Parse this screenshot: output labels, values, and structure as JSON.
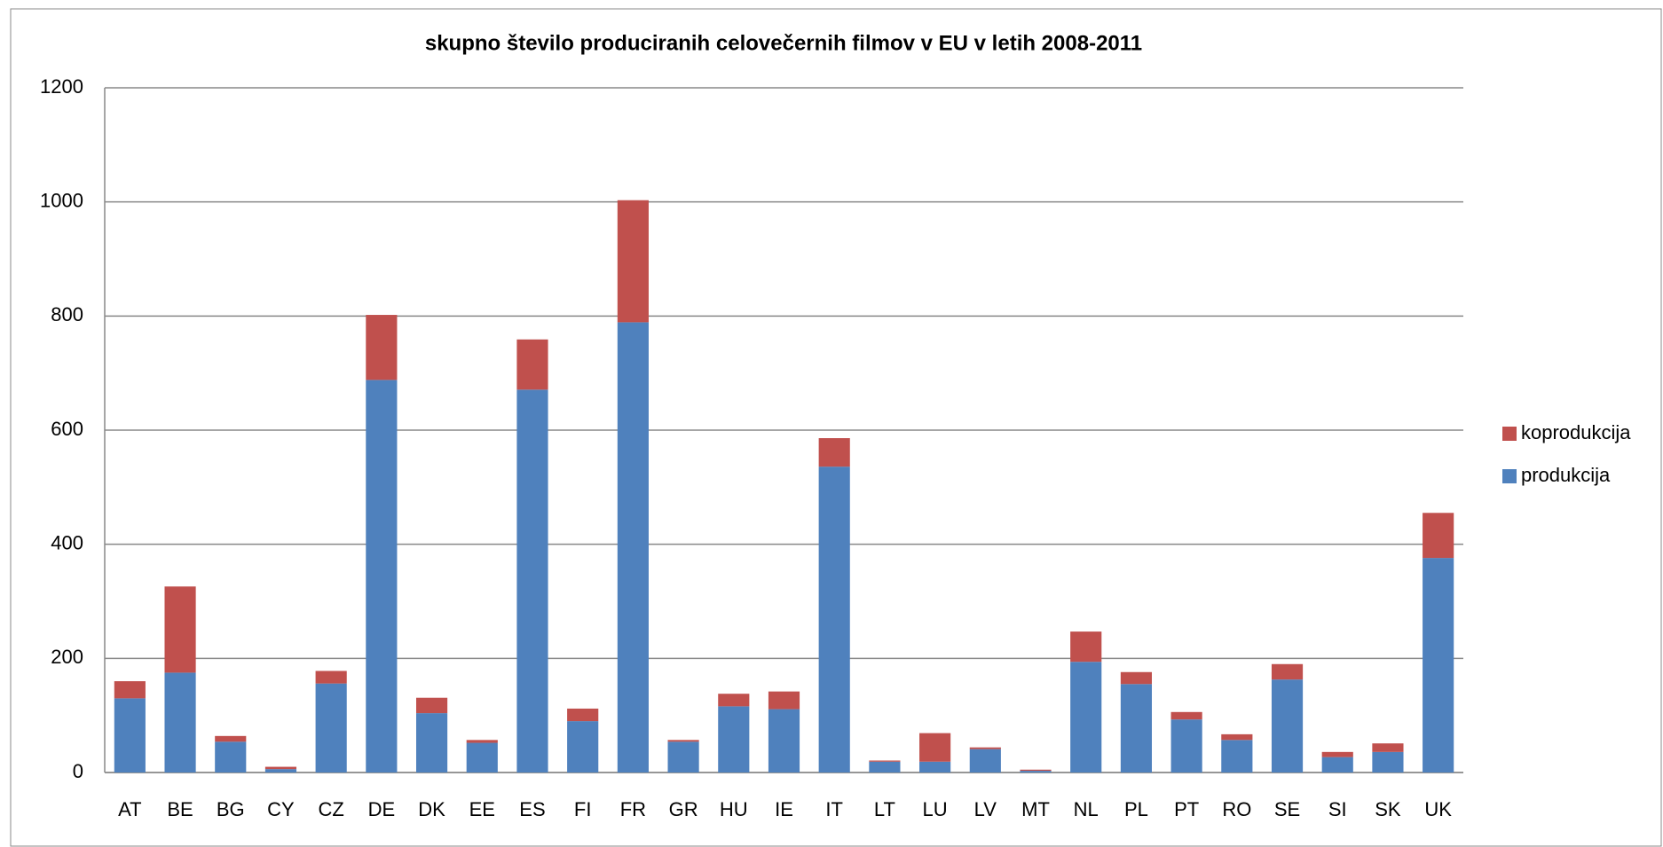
{
  "chart_data": {
    "type": "stacked_bar",
    "title": "skupno število produciranih celovečernih filmov v EU v letih 2008-2011",
    "categories": [
      "AT",
      "BE",
      "BG",
      "CY",
      "CZ",
      "DE",
      "DK",
      "EE",
      "ES",
      "FI",
      "FR",
      "GR",
      "HU",
      "IE",
      "IT",
      "LT",
      "LU",
      "LV",
      "MT",
      "NL",
      "PL",
      "PT",
      "RO",
      "SE",
      "SI",
      "SK",
      "UK"
    ],
    "series": [
      {
        "name": "produkcija",
        "color": "#4f81bd",
        "values": [
          130,
          175,
          54,
          6,
          156,
          688,
          104,
          52,
          671,
          90,
          789,
          54,
          116,
          111,
          536,
          19,
          19,
          41,
          3,
          194,
          155,
          93,
          57,
          163,
          27,
          36,
          376
        ]
      },
      {
        "name": "koprodukcija",
        "color": "#c0504d",
        "values": [
          30,
          151,
          10,
          4,
          22,
          114,
          27,
          5,
          88,
          22,
          214,
          3,
          22,
          31,
          50,
          2,
          50,
          3,
          2,
          53,
          21,
          13,
          10,
          27,
          9,
          15,
          79
        ]
      }
    ],
    "ylim": [
      0,
      1200
    ],
    "yticks": [
      0,
      200,
      400,
      600,
      800,
      1000,
      1200
    ],
    "grid": true,
    "legend": "right"
  }
}
